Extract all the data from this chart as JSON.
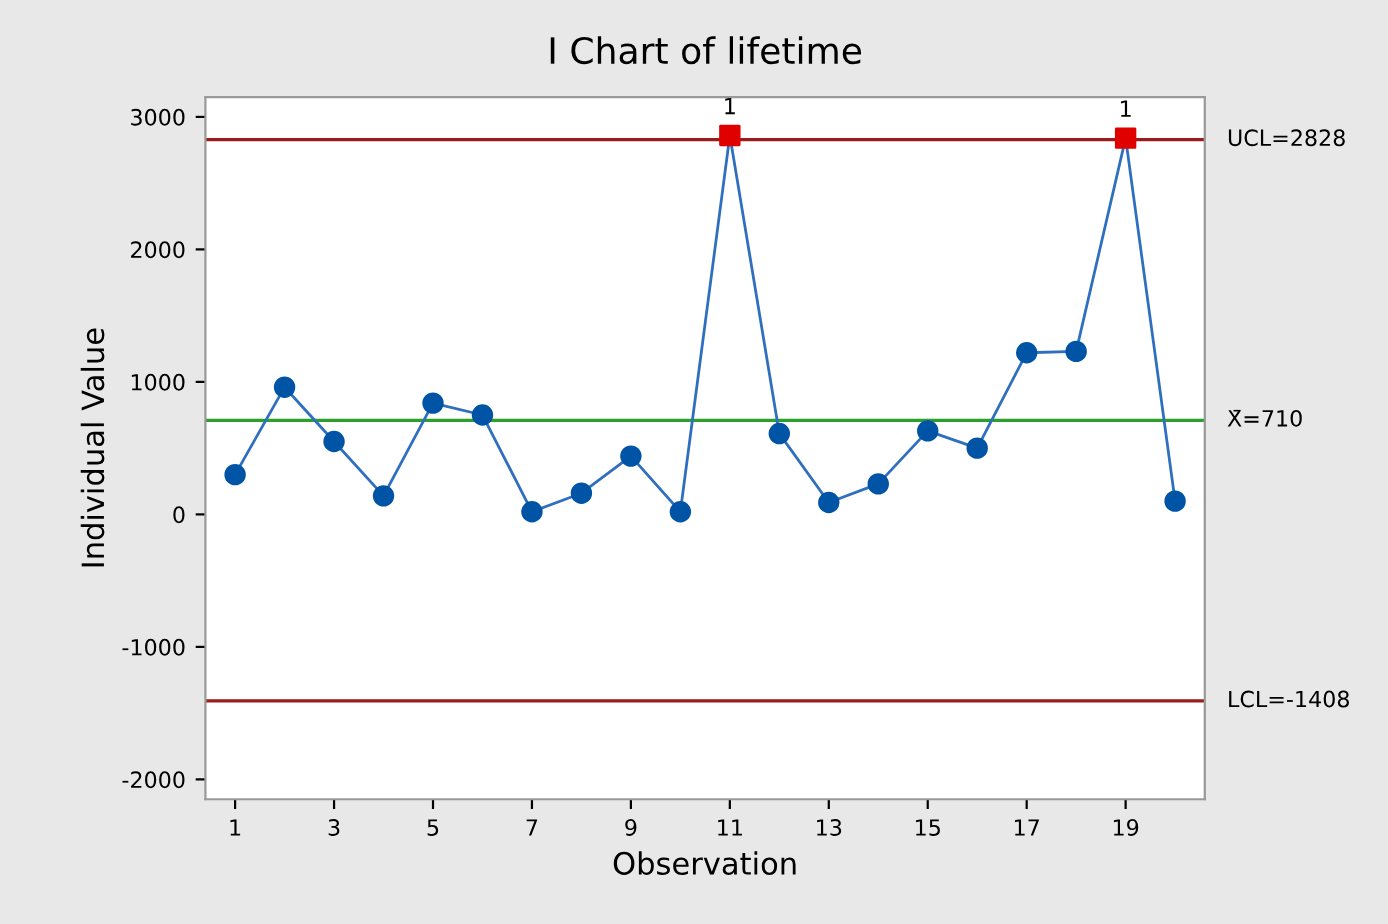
{
  "chart_data": {
    "type": "line",
    "title": "I Chart of lifetime",
    "xlabel": "Observation",
    "ylabel": "Individual Value",
    "x": [
      1,
      2,
      3,
      4,
      5,
      6,
      7,
      8,
      9,
      10,
      11,
      12,
      13,
      14,
      15,
      16,
      17,
      18,
      19,
      20
    ],
    "series": [
      {
        "color": "#2f6fbf",
        "marker": "none",
        "values": [
          300,
          960,
          550,
          140,
          840,
          750,
          20,
          160,
          440,
          20,
          2860,
          610,
          90,
          230,
          630,
          500,
          1220,
          1230,
          2840,
          100
        ]
      },
      {
        "type": "scatter",
        "color": "#0054a6",
        "marker": "circle",
        "values": [
          300,
          960,
          550,
          140,
          840,
          750,
          20,
          160,
          440,
          20,
          null,
          610,
          90,
          230,
          630,
          500,
          1220,
          1230,
          null,
          100
        ]
      },
      {
        "type": "scatter",
        "color": "#e00000",
        "marker": "square",
        "values": [
          null,
          null,
          null,
          null,
          null,
          null,
          null,
          null,
          null,
          null,
          2860,
          null,
          null,
          null,
          null,
          null,
          null,
          null,
          2840,
          null
        ]
      }
    ],
    "annotations": [
      {
        "text": "1",
        "x": 11,
        "y": 2860
      },
      {
        "text": "1",
        "x": 19,
        "y": 2840
      }
    ],
    "ref_lines": [
      {
        "axis": "y",
        "value": 2828,
        "label": "UCL=2828",
        "color": "#9b1c1c"
      },
      {
        "axis": "y",
        "value": 710,
        "label": "X̄=710",
        "color": "#2ca02c"
      },
      {
        "axis": "y",
        "value": -1408,
        "label": "LCL=-1408",
        "color": "#9b1c1c"
      }
    ],
    "xlim": [
      0.4,
      20.6
    ],
    "xticks": [
      1,
      3,
      5,
      7,
      9,
      11,
      13,
      15,
      17,
      19
    ],
    "ylim": [
      -2150,
      3150
    ],
    "yticks": [
      -2000,
      -1000,
      0,
      1000,
      2000,
      3000
    ],
    "grid": false
  }
}
